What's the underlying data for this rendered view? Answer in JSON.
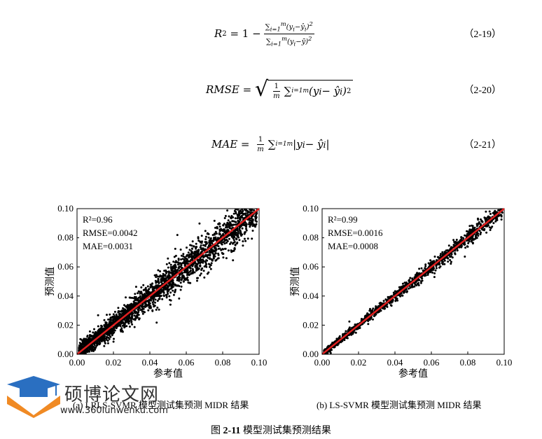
{
  "equations": [
    {
      "number": "（2-19）"
    },
    {
      "number": "（2-20）"
    },
    {
      "number": "（2-21）"
    }
  ],
  "chart_data": [
    {
      "type": "scatter",
      "subplot_label": "(a) LRLS-SVMR  模型测试集预测 MIDR 结果",
      "xlabel": "参考值",
      "ylabel": "预测值",
      "xlim": [
        0.0,
        0.1
      ],
      "ylim": [
        0.0,
        0.1
      ],
      "xticks": [
        "0.00",
        "0.02",
        "0.04",
        "0.06",
        "0.08",
        "0.10"
      ],
      "yticks": [
        "0.00",
        "0.02",
        "0.04",
        "0.06",
        "0.08",
        "0.10"
      ],
      "annotations": [
        "R²=0.96",
        "RMSE=0.0042",
        "MAE=0.0031"
      ],
      "fit_line": {
        "x": [
          0.0,
          0.1
        ],
        "y": [
          0.0,
          0.1
        ],
        "color": "#e02020"
      },
      "point_color": "#000000",
      "point_count": 2600,
      "noise_sd": 0.0042
    },
    {
      "type": "scatter",
      "subplot_label": "(b) LS-SVMR  模型测试集预测 MIDR 结果",
      "xlabel": "参考值",
      "ylabel": "预测值",
      "xlim": [
        0.0,
        0.1
      ],
      "ylim": [
        0.0,
        0.1
      ],
      "xticks": [
        "0.00",
        "0.02",
        "0.04",
        "0.06",
        "0.08",
        "0.10"
      ],
      "yticks": [
        "0.00",
        "0.02",
        "0.04",
        "0.06",
        "0.08",
        "0.10"
      ],
      "annotations": [
        "R²=0.99",
        "RMSE=0.0016",
        "MAE=0.0008"
      ],
      "fit_line": {
        "x": [
          0.0,
          0.1
        ],
        "y": [
          0.0,
          0.1
        ],
        "color": "#e02020"
      },
      "point_color": "#000000",
      "point_count": 1500,
      "noise_sd": 0.0016
    }
  ],
  "figure_caption": {
    "prefix": "图 ",
    "number": "2-11",
    "text": " 模型测试集预测结果"
  },
  "watermark": {
    "name": "硕博论文网",
    "url": "www.360lunwenku.com"
  }
}
